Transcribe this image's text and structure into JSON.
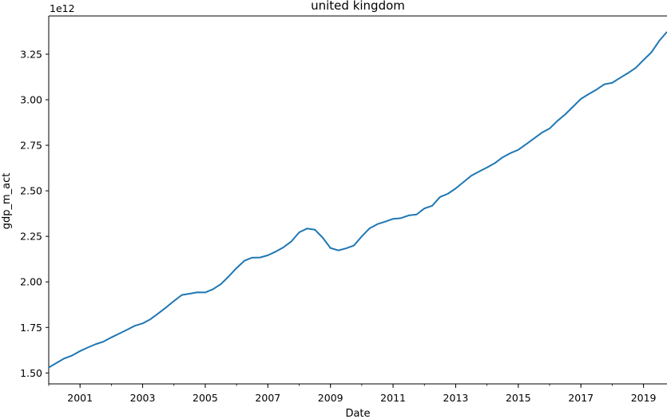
{
  "chart_data": {
    "type": "line",
    "title": "united kingdom",
    "xlabel": "Date",
    "ylabel": "gdp_m_act",
    "y_offset_label": "1e12",
    "x_tick_labels": [
      "2001",
      "2003",
      "2005",
      "2007",
      "2009",
      "2011",
      "2013",
      "2015",
      "2017",
      "2019"
    ],
    "x_tick_years": [
      2001,
      2003,
      2005,
      2007,
      2009,
      2011,
      2013,
      2015,
      2017,
      2019
    ],
    "xlim": [
      2000.0,
      2019.75
    ],
    "y_tick_values": [
      1.5,
      1.75,
      2.0,
      2.25,
      2.5,
      2.75,
      3.0,
      3.25
    ],
    "y_tick_labels": [
      "1.50",
      "1.75",
      "2.00",
      "2.25",
      "2.50",
      "2.75",
      "3.00",
      "3.25"
    ],
    "ylim": [
      1.44,
      3.46
    ],
    "line_color": "#1f77b4",
    "grid": false,
    "series": [
      {
        "x": [
          "2000-Q1",
          "2000-Q2",
          "2000-Q3",
          "2000-Q4",
          "2001-Q1",
          "2001-Q2",
          "2001-Q3",
          "2001-Q4",
          "2002-Q1",
          "2002-Q2",
          "2002-Q3",
          "2002-Q4",
          "2003-Q1",
          "2003-Q2",
          "2003-Q3",
          "2003-Q4",
          "2004-Q1",
          "2004-Q2",
          "2004-Q3",
          "2004-Q4",
          "2005-Q1",
          "2005-Q2",
          "2005-Q3",
          "2005-Q4",
          "2006-Q1",
          "2006-Q2",
          "2006-Q3",
          "2006-Q4",
          "2007-Q1",
          "2007-Q2",
          "2007-Q3",
          "2007-Q4",
          "2008-Q1",
          "2008-Q2",
          "2008-Q3",
          "2008-Q4",
          "2009-Q1",
          "2009-Q2",
          "2009-Q3",
          "2009-Q4",
          "2010-Q1",
          "2010-Q2",
          "2010-Q3",
          "2010-Q4",
          "2011-Q1",
          "2011-Q2",
          "2011-Q3",
          "2011-Q4",
          "2012-Q1",
          "2012-Q2",
          "2012-Q3",
          "2012-Q4",
          "2013-Q1",
          "2013-Q2",
          "2013-Q3",
          "2013-Q4",
          "2014-Q1",
          "2014-Q2",
          "2014-Q3",
          "2014-Q4",
          "2015-Q1",
          "2015-Q2",
          "2015-Q3",
          "2015-Q4",
          "2016-Q1",
          "2016-Q2",
          "2016-Q3",
          "2016-Q4",
          "2017-Q1",
          "2017-Q2",
          "2017-Q3",
          "2017-Q4",
          "2018-Q1",
          "2018-Q2",
          "2018-Q3",
          "2018-Q4",
          "2019-Q1",
          "2019-Q2",
          "2019-Q3",
          "2019-Q4"
        ],
        "values": [
          1.53,
          1.555,
          1.58,
          1.596,
          1.62,
          1.64,
          1.658,
          1.672,
          1.695,
          1.716,
          1.737,
          1.759,
          1.772,
          1.795,
          1.827,
          1.86,
          1.895,
          1.928,
          1.935,
          1.943,
          1.942,
          1.96,
          1.988,
          2.03,
          2.076,
          2.116,
          2.133,
          2.134,
          2.146,
          2.166,
          2.19,
          2.222,
          2.272,
          2.293,
          2.287,
          2.243,
          2.186,
          2.173,
          2.184,
          2.2,
          2.25,
          2.294,
          2.317,
          2.331,
          2.346,
          2.35,
          2.365,
          2.37,
          2.403,
          2.418,
          2.466,
          2.484,
          2.513,
          2.548,
          2.583,
          2.606,
          2.628,
          2.652,
          2.684,
          2.707,
          2.725,
          2.756,
          2.787,
          2.819,
          2.842,
          2.884,
          2.92,
          2.962,
          3.005,
          3.031,
          3.056,
          3.085,
          3.093,
          3.12,
          3.146,
          3.175,
          3.218,
          3.26,
          3.323,
          3.373
        ]
      }
    ]
  }
}
